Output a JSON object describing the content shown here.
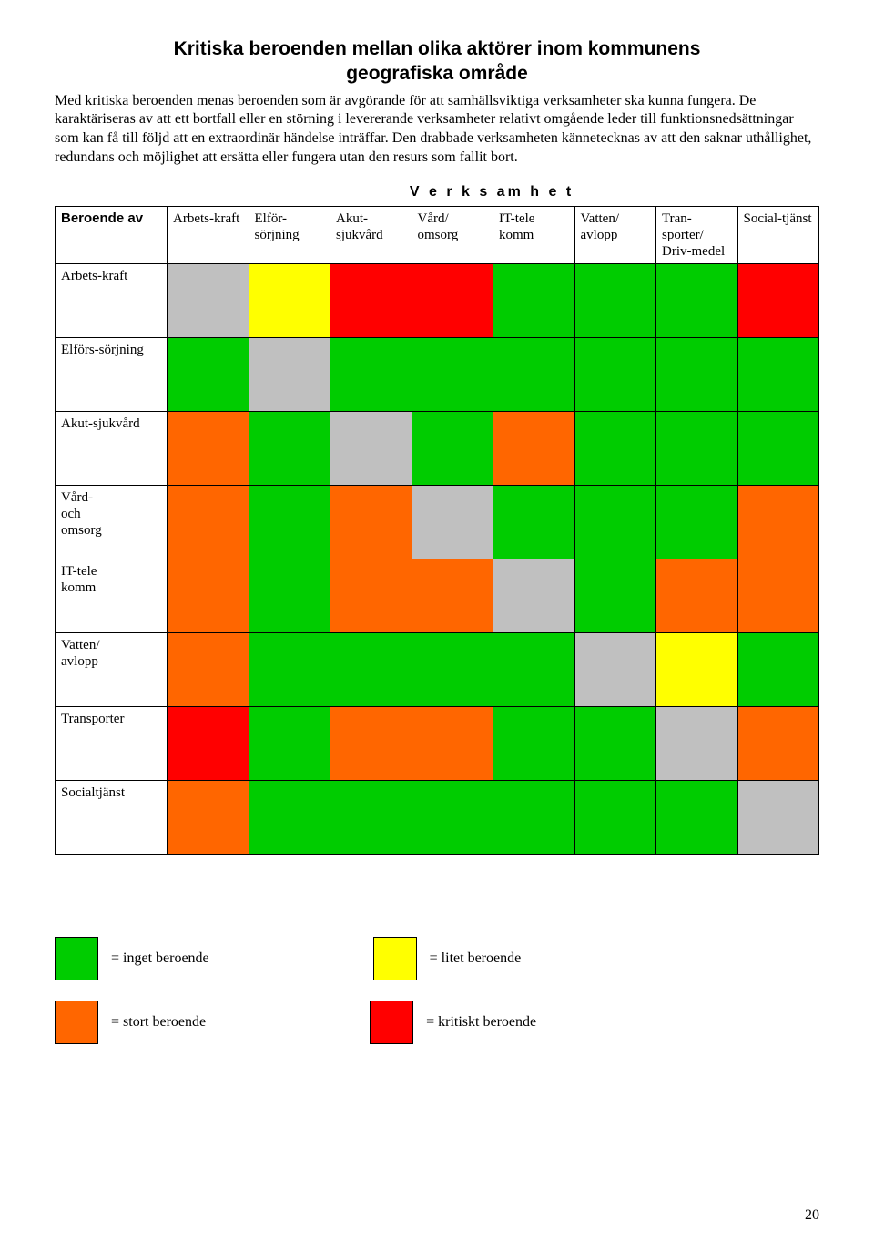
{
  "title_line1": "Kritiska beroenden mellan olika aktörer inom kommunens",
  "title_line2": "geografiska område",
  "intro": "Med kritiska beroenden menas beroenden som är avgörande för att samhällsviktiga verksamheter ska kunna fungera. De karaktäriseras av att ett bortfall eller en störning i levererande verksamheter relativt omgående leder till funktionsnedsättningar som kan få till följd att en extraordinär händelse inträffar. Den drabbade verksamheten kännetecknas av att den saknar uthållighet, redundans och möjlighet att ersätta eller fungera utan den resurs som fallit bort.",
  "section_header": "V e r k s am h e t",
  "row_axis_label": "Beroende av",
  "columns": [
    "Arbets-kraft",
    "Elför-sörjning",
    "Akut-sjukvård",
    "Vård/ omsorg",
    "IT-tele komm",
    "Vatten/ avlopp",
    "Tran-sporter/ Driv-medel",
    "Social-tjänst"
  ],
  "rows": [
    "Arbets-kraft",
    "Elförs-sörjning",
    "Akut-sjukvård",
    "Vård- och omsorg",
    "IT-tele komm",
    "Vatten/ avlopp",
    "Transporter",
    "Socialtjänst"
  ],
  "palette": {
    "green": "#00cc00",
    "yellow": "#ffff00",
    "orange": "#ff6600",
    "red": "#ff0000",
    "grey": "#c0c0c0"
  },
  "matrix": [
    [
      "grey",
      "yellow",
      "red",
      "red",
      "green",
      "green",
      "green",
      "red"
    ],
    [
      "green",
      "grey",
      "green",
      "green",
      "green",
      "green",
      "green",
      "green"
    ],
    [
      "orange",
      "green",
      "grey",
      "green",
      "orange",
      "green",
      "green",
      "green"
    ],
    [
      "orange",
      "green",
      "orange",
      "grey",
      "green",
      "green",
      "green",
      "orange"
    ],
    [
      "orange",
      "green",
      "orange",
      "orange",
      "grey",
      "green",
      "orange",
      "orange"
    ],
    [
      "orange",
      "green",
      "green",
      "green",
      "green",
      "grey",
      "yellow",
      "green"
    ],
    [
      "red",
      "green",
      "orange",
      "orange",
      "green",
      "green",
      "grey",
      "orange"
    ],
    [
      "orange",
      "green",
      "green",
      "green",
      "green",
      "green",
      "green",
      "grey"
    ]
  ],
  "legend": [
    {
      "label": "= inget beroende",
      "color": "green"
    },
    {
      "label": "= litet beroende",
      "color": "yellow"
    },
    {
      "label": "= stort beroende",
      "color": "orange"
    },
    {
      "label": "= kritiskt beroende",
      "color": "red"
    }
  ],
  "page_number": "20"
}
